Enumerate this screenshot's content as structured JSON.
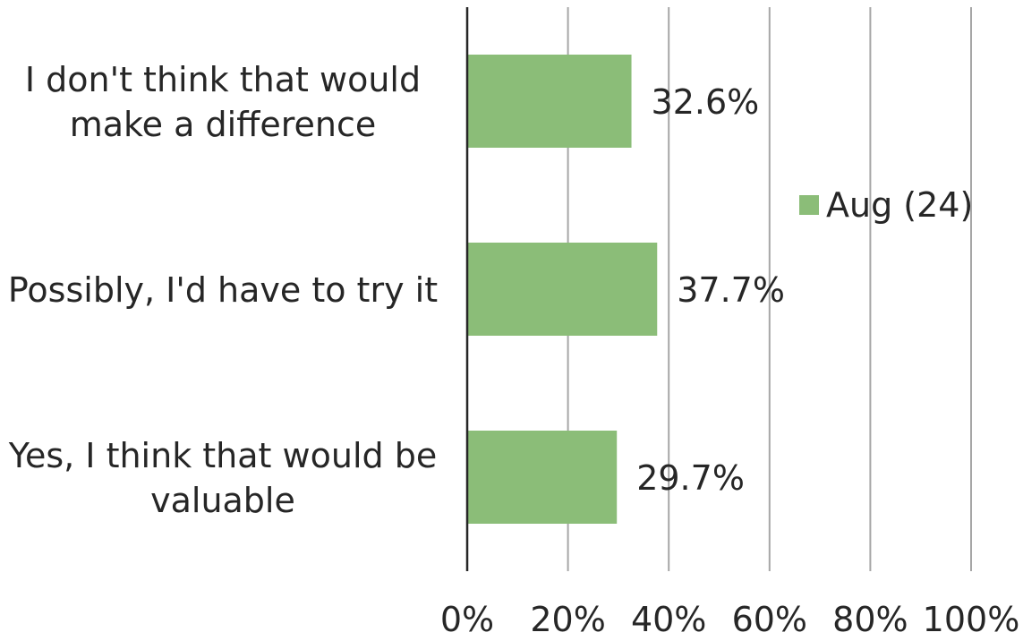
{
  "chart_data": {
    "type": "bar",
    "orientation": "horizontal",
    "categories": [
      [
        "I don't think that would",
        "make a difference"
      ],
      [
        "Possibly, I'd have to try it"
      ],
      [
        "Yes, I think that would be",
        "valuable"
      ]
    ],
    "series": [
      {
        "name": "Aug (24)",
        "color": "#8bbd78",
        "values": [
          32.6,
          37.7,
          29.7
        ],
        "labels": [
          "32.6%",
          "37.7%",
          "29.7%"
        ]
      }
    ],
    "xlim": [
      0,
      100
    ],
    "xticks": [
      0,
      20,
      40,
      60,
      80,
      100
    ],
    "xtick_labels": [
      "0%",
      "20%",
      "40%",
      "60%",
      "80%",
      "100%"
    ],
    "grid": "vertical",
    "legend_position": "right",
    "title": "",
    "xlabel": "",
    "ylabel": ""
  }
}
